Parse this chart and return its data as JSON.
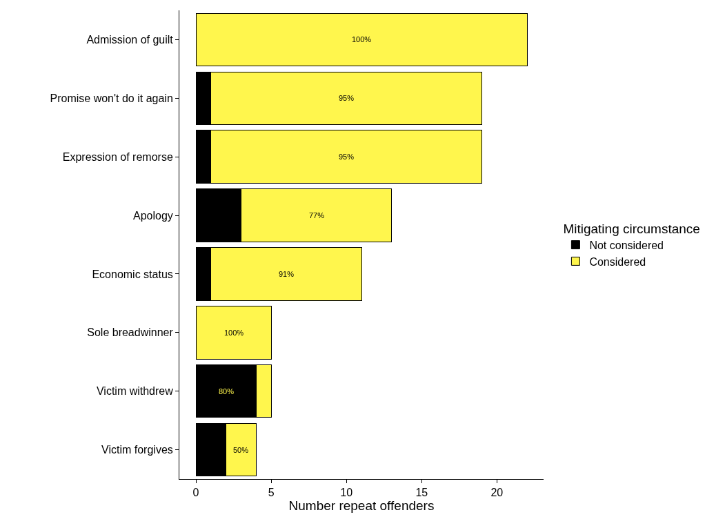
{
  "chart_data": {
    "type": "bar",
    "orientation": "horizontal",
    "stacked": true,
    "xlabel": "Number repeat offenders",
    "legend_title": "Mitigating circumstance",
    "legend": "right",
    "categories": [
      "Admission of guilt",
      "Promise won't do it again",
      "Expression of remorse",
      "Apology",
      "Economic status",
      "Sole breadwinner",
      "Victim withdrew",
      "Victim forgives"
    ],
    "series": [
      {
        "name": "Not considered",
        "color": "#000000",
        "values": [
          0,
          1,
          1,
          3,
          1,
          0,
          4,
          2
        ]
      },
      {
        "name": "Considered",
        "color": "#fff64d",
        "values": [
          22,
          18,
          18,
          10,
          10,
          5,
          1,
          2
        ]
      }
    ],
    "xlim": [
      -1.1,
      23.1
    ],
    "xticks": [
      0,
      5,
      10,
      15,
      20
    ],
    "annotations": [
      {
        "text": "100%",
        "x": 11,
        "y": "Admission of guilt"
      },
      {
        "text": "95%",
        "x": 10,
        "y": "Promise won't do it again"
      },
      {
        "text": "95%",
        "x": 10,
        "y": "Expression of remorse"
      },
      {
        "text": "77%",
        "x": 8,
        "y": "Apology"
      },
      {
        "text": "91%",
        "x": 6,
        "y": "Economic status"
      },
      {
        "text": "100%",
        "x": 2.5,
        "y": "Sole breadwinner"
      },
      {
        "text": "80%",
        "x": 2,
        "y": "Victim withdrew"
      },
      {
        "text": "50%",
        "x": 3,
        "y": "Victim forgives"
      }
    ]
  }
}
